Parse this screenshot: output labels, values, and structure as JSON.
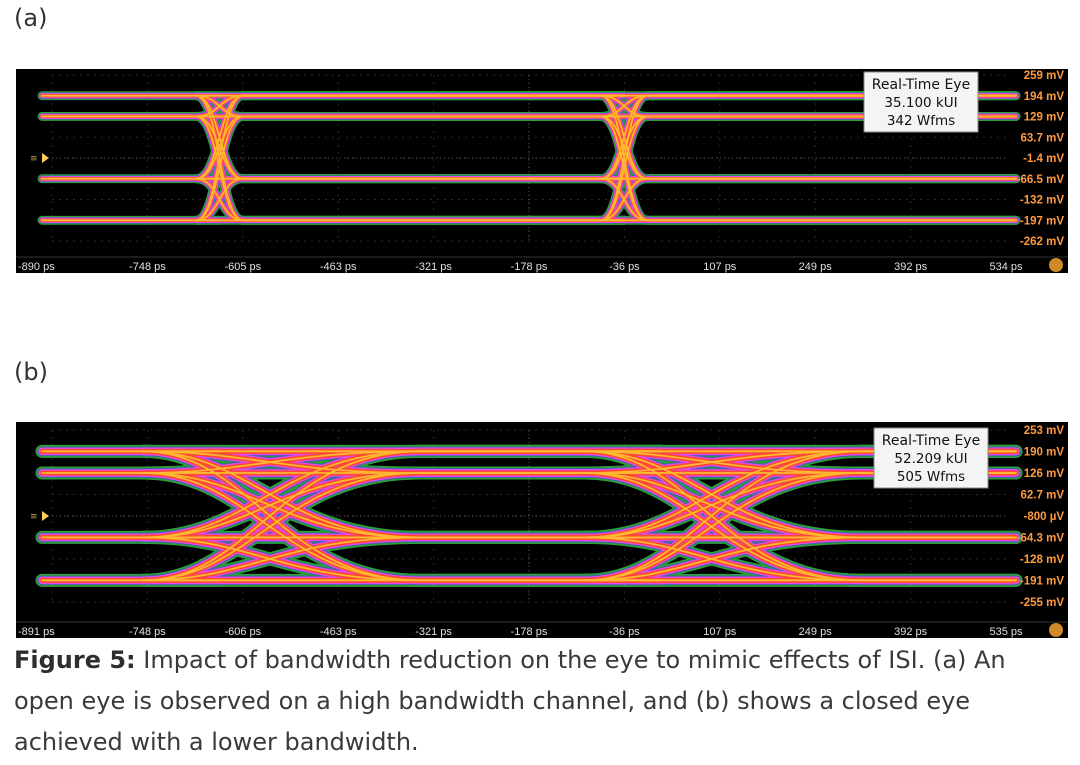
{
  "figure": {
    "caption_label": "Figure 5:",
    "caption_text": " Impact of bandwidth reduction on the eye to mimic effects of ISI. (a) An open eye is observed on a high bandwidth channel, and (b) shows a closed eye achieved with a lower bandwidth."
  },
  "colors": {
    "background": "#000000",
    "trace_core": "#ffb830",
    "trace_mid": "#ff4a2a",
    "trace_edge": "#39d64a",
    "crossing": "#ff44ff",
    "crossing_deep": "#5533ff",
    "tick_text": "#ff9a40"
  },
  "chart_data": [
    {
      "type": "eye-diagram",
      "panel_label": "(a)",
      "legend": {
        "title": "Real-Time Eye",
        "line1": "35.100 kUI",
        "line2": "342 Wfms",
        "placement": "top-right"
      },
      "x_ticks": [
        "-890 ps",
        "-748 ps",
        "-605 ps",
        "-463 ps",
        "-321 ps",
        "-178 ps",
        "-36 ps",
        "107 ps",
        "249 ps",
        "392 ps",
        "534 ps"
      ],
      "x_range": [
        -890,
        534
      ],
      "y_ticks": [
        "259 mV",
        "194 mV",
        "129 mV",
        "63.7 mV",
        "-1.4 mV",
        "-66.5 mV",
        "-132 mV",
        "-197 mV",
        "-262 mV"
      ],
      "y_range": [
        -262,
        259
      ],
      "levels_mV": [
        194,
        129,
        -66.5,
        -197
      ],
      "crossings_ps": [
        -640,
        -36
      ],
      "eye_state": "open",
      "transition_width_ps": 70
    },
    {
      "type": "eye-diagram",
      "panel_label": "(b)",
      "legend": {
        "title": "Real-Time Eye",
        "line1": "52.209 kUI",
        "line2": "505 Wfms",
        "placement": "top-right"
      },
      "x_ticks": [
        "-891 ps",
        "-748 ps",
        "-606 ps",
        "-463 ps",
        "-321 ps",
        "-178 ps",
        "-36 ps",
        "107 ps",
        "249 ps",
        "392 ps",
        "535 ps"
      ],
      "x_range": [
        -891,
        535
      ],
      "y_ticks": [
        "253 mV",
        "190 mV",
        "126 mV",
        "62.7 mV",
        "-800 µV",
        "-64.3 mV",
        "-128 mV",
        "-191 mV",
        "-255 mV"
      ],
      "y_range": [
        -255,
        253
      ],
      "levels_mV": [
        190,
        126,
        -64.3,
        -191
      ],
      "crossings_ps": [
        -640,
        20
      ],
      "eye_state": "closed",
      "transition_width_ps": 230
    }
  ]
}
